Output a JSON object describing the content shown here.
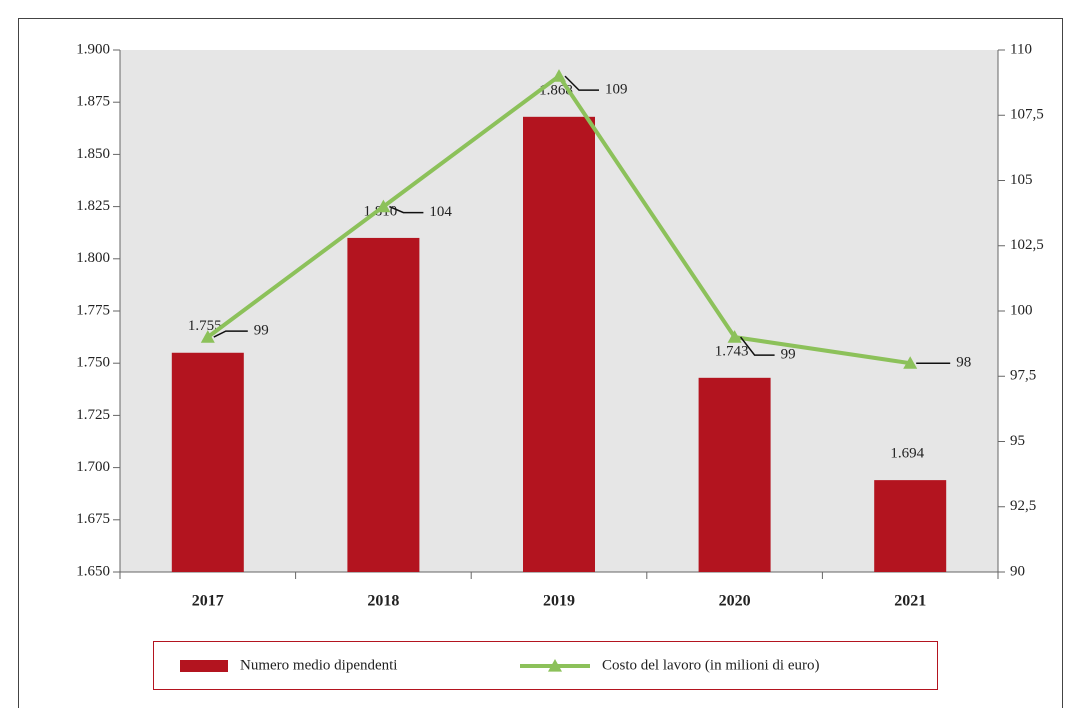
{
  "chart_data": {
    "type": "bar",
    "categories": [
      "2017",
      "2018",
      "2019",
      "2020",
      "2021"
    ],
    "series": [
      {
        "name": "Numero medio dipendenti",
        "type": "bar",
        "color": "#b3141f",
        "values": [
          1755,
          1810,
          1868,
          1743,
          1694
        ],
        "value_labels": [
          "1.755",
          "1.810",
          "1.868",
          "1.743",
          "1.694"
        ]
      },
      {
        "name": "Costo del lavoro (in milioni di euro)",
        "type": "line",
        "color": "#8cc15a",
        "axis": "y2",
        "values": [
          99,
          104,
          109,
          99,
          98
        ]
      }
    ],
    "ylim": [
      1650,
      1900
    ],
    "yticks": [
      {
        "value": 1650,
        "label": "1.650"
      },
      {
        "value": 1675,
        "label": "1.675"
      },
      {
        "value": 1700,
        "label": "1.700"
      },
      {
        "value": 1725,
        "label": "1.725"
      },
      {
        "value": 1750,
        "label": "1.750"
      },
      {
        "value": 1775,
        "label": "1.775"
      },
      {
        "value": 1800,
        "label": "1.800"
      },
      {
        "value": 1825,
        "label": "1.825"
      },
      {
        "value": 1850,
        "label": "1.850"
      },
      {
        "value": 1875,
        "label": "1.875"
      },
      {
        "value": 1900,
        "label": "1.900"
      }
    ],
    "y2lim": [
      90,
      110
    ],
    "y2ticks": [
      90,
      {
        "value": 92.5,
        "label": "92,5"
      },
      95,
      {
        "value": 97.5,
        "label": "97,5"
      },
      100,
      {
        "value": 102.5,
        "label": "102,5"
      },
      105,
      {
        "value": 107.5,
        "label": "107,5"
      },
      110
    ],
    "legend": "bottom"
  }
}
